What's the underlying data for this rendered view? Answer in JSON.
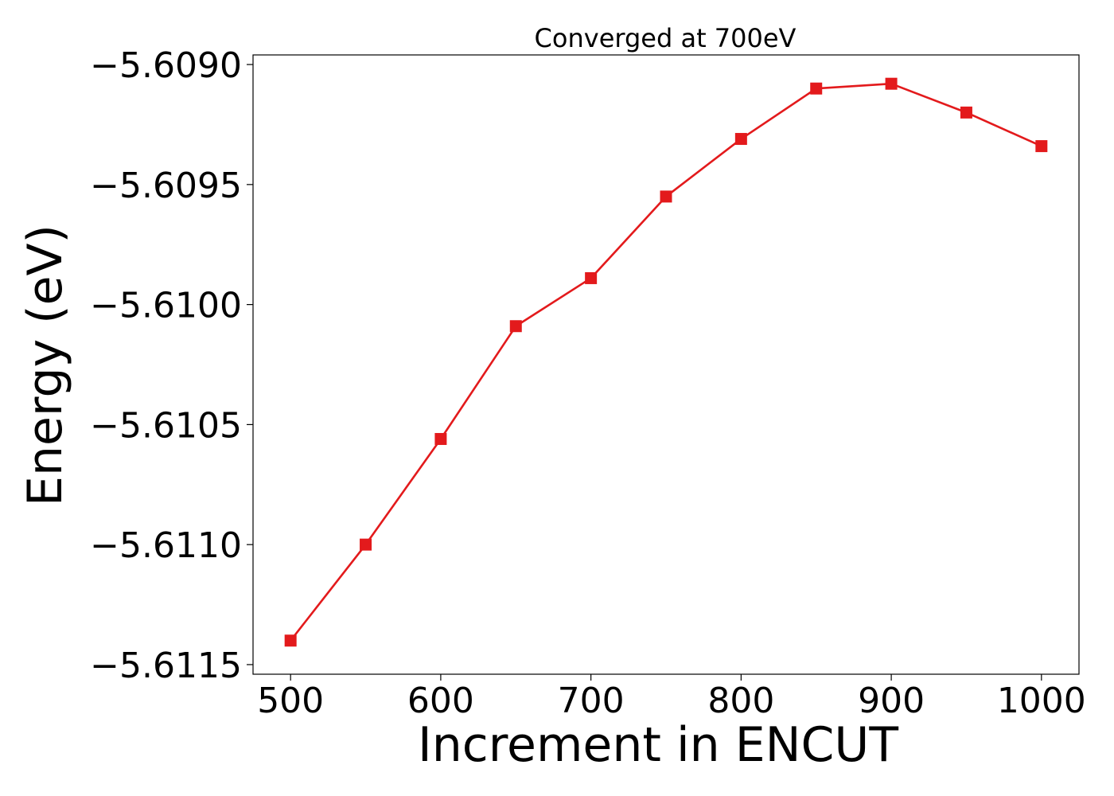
{
  "chart_data": {
    "type": "line",
    "title": "Converged at 700eV",
    "xlabel": "Increment in ENCUT",
    "ylabel": "Energy (eV)",
    "x": [
      500,
      550,
      600,
      650,
      700,
      750,
      800,
      850,
      900,
      950,
      1000
    ],
    "series": [
      {
        "values": [
          -5.6114,
          -5.611,
          -5.61056,
          -5.61009,
          -5.60989,
          -5.60955,
          -5.60931,
          -5.6091,
          -5.60908,
          -5.6092,
          -5.60934
        ],
        "color": "#e31a1c",
        "marker": "square"
      }
    ],
    "xlim": [
      475,
      1025
    ],
    "ylim": [
      -5.61154,
      -5.60896
    ],
    "xticks": [
      500,
      600,
      700,
      800,
      900,
      1000
    ],
    "xtick_labels": [
      "500",
      "600",
      "700",
      "800",
      "900",
      "1000"
    ],
    "yticks": [
      -5.609,
      -5.6095,
      -5.61,
      -5.6105,
      -5.611,
      -5.6115
    ],
    "ytick_labels": [
      "−5.6090",
      "−5.6095",
      "−5.6100",
      "−5.6105",
      "−5.6110",
      "−5.6115"
    ],
    "grid": false,
    "legend": "none"
  }
}
